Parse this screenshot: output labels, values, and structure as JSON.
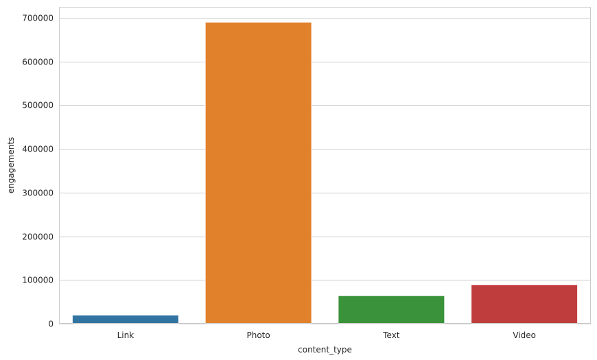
{
  "chart_data": {
    "type": "bar",
    "categories": [
      "Link",
      "Photo",
      "Text",
      "Video"
    ],
    "values": [
      19500,
      690000,
      64000,
      89000
    ],
    "colors": [
      "#3274a1",
      "#e1812c",
      "#3a923a",
      "#c03d3e"
    ],
    "xlabel": "content_type",
    "ylabel": "engagements",
    "ylim": [
      0,
      725000
    ],
    "yticks": [
      0,
      100000,
      200000,
      300000,
      400000,
      500000,
      600000,
      700000
    ],
    "grid": true
  }
}
